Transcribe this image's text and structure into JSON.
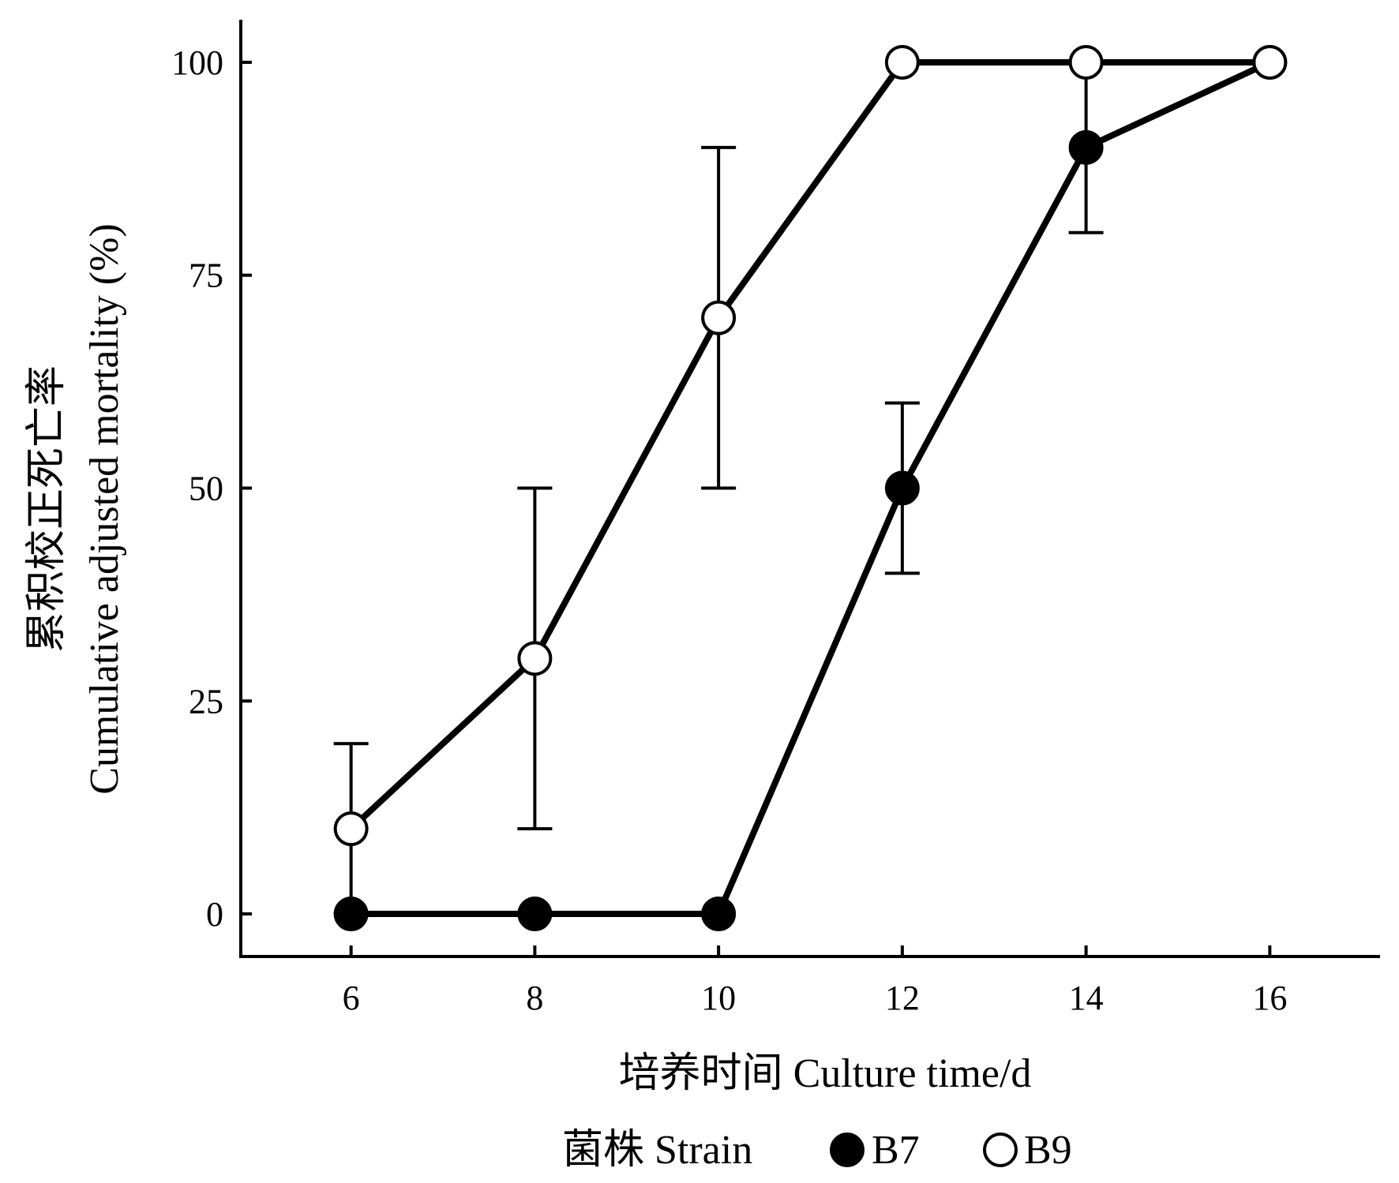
{
  "chart_data": {
    "type": "line",
    "xlabel": "培养时间  Culture time/d",
    "ylabel_cn": "累积校正死亡率",
    "ylabel_en": "Cumulative adjusted mortality (%)",
    "x_ticks": [
      "6",
      "8",
      "10",
      "12",
      "14",
      "16"
    ],
    "y_ticks": [
      "0",
      "25",
      "50",
      "75",
      "100"
    ],
    "xlim": [
      4.8,
      17.2
    ],
    "ylim": [
      -5,
      105
    ],
    "grid": false,
    "legend": {
      "title": "菌株  Strain",
      "placement": "bottom"
    },
    "series": [
      {
        "name": "B7",
        "marker": "filled-circle",
        "color": "#000000",
        "points": [
          {
            "x": 6,
            "y": 0
          },
          {
            "x": 8,
            "y": 0
          },
          {
            "x": 10,
            "y": 0
          },
          {
            "x": 12,
            "y": 50,
            "err_low": 40,
            "err_high": 60
          },
          {
            "x": 14,
            "y": 90,
            "err_low": 80,
            "err_high": 100
          },
          {
            "x": 16,
            "y": 100
          }
        ]
      },
      {
        "name": "B9",
        "marker": "open-circle",
        "color": "#000000",
        "points": [
          {
            "x": 6,
            "y": 10,
            "err_low": 0,
            "err_high": 20
          },
          {
            "x": 8,
            "y": 30,
            "err_low": 10,
            "err_high": 50
          },
          {
            "x": 10,
            "y": 70,
            "err_low": 50,
            "err_high": 90
          },
          {
            "x": 12,
            "y": 100
          },
          {
            "x": 14,
            "y": 100
          },
          {
            "x": 16,
            "y": 100
          }
        ]
      }
    ]
  }
}
